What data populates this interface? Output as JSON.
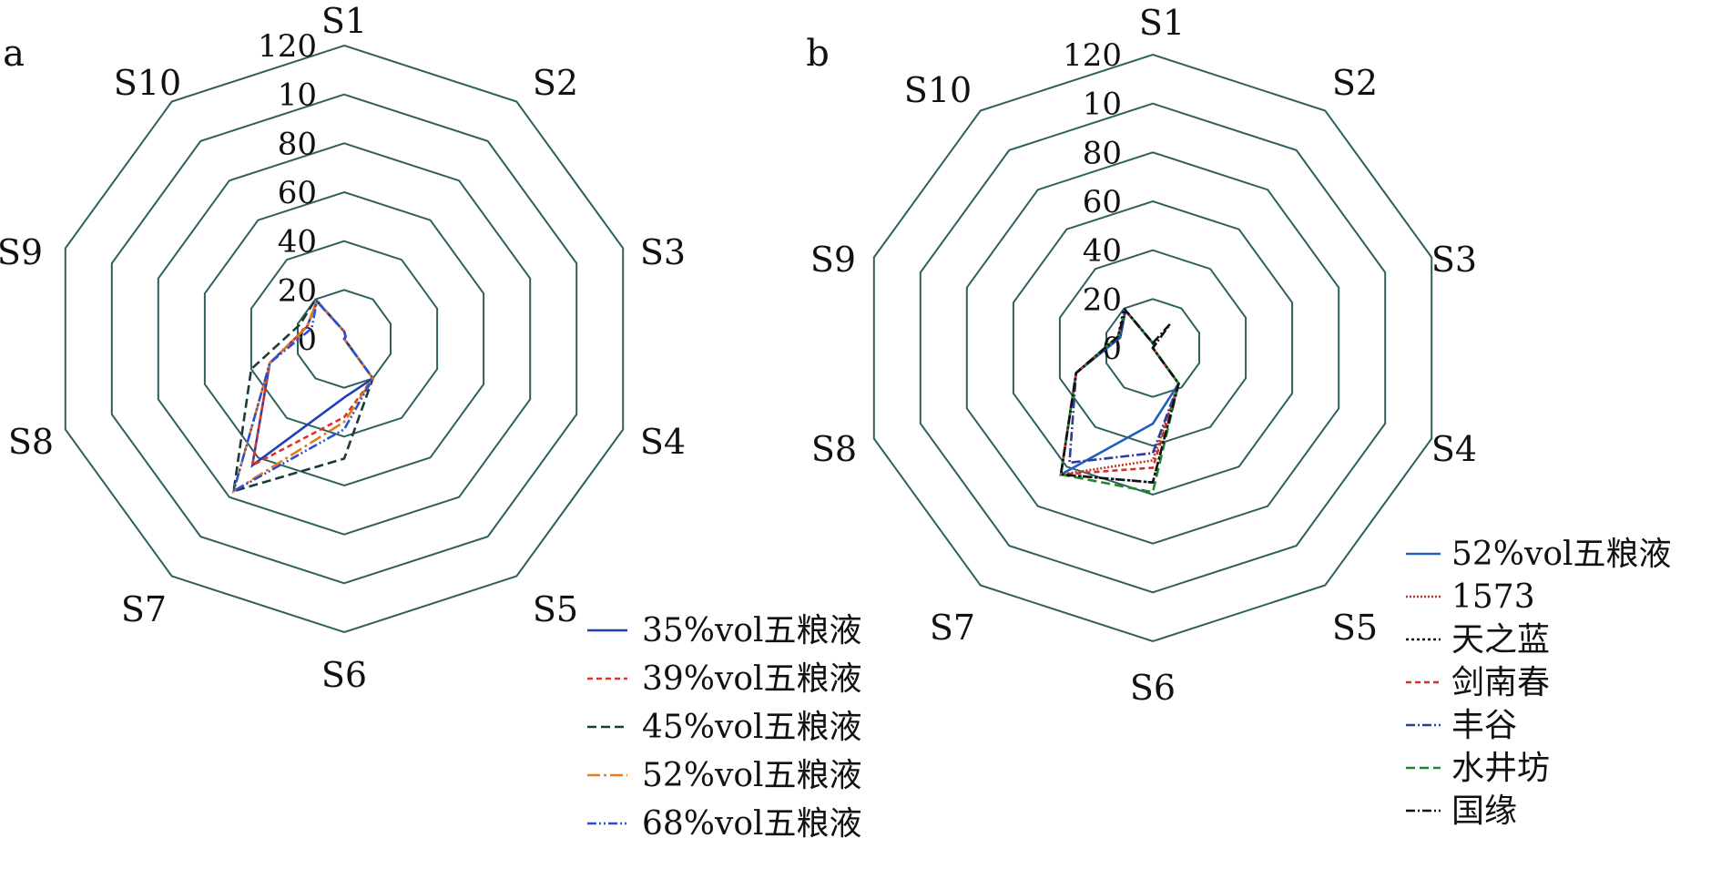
{
  "chart_data": [
    {
      "panel_label": "a",
      "type": "radar",
      "axes": [
        "S1",
        "S2",
        "S3",
        "S4",
        "S5",
        "S6",
        "S7",
        "S8",
        "S9",
        "S10"
      ],
      "radial_ticks": [
        "0",
        "20",
        "40",
        "60",
        "80",
        "10",
        "120"
      ],
      "radial_range": [
        0,
        120
      ],
      "legend_position": "bottom-right",
      "series": [
        {
          "name": "35%vol五粮液",
          "color": "#1f3fb5",
          "dash": "",
          "values": [
            3,
            1,
            0,
            0,
            20,
            24,
            64,
            32,
            16,
            19
          ]
        },
        {
          "name": "39%vol五粮液",
          "color": "#e0312b",
          "dash": "6,4",
          "values": [
            3,
            1,
            0,
            0,
            20,
            32,
            64,
            32,
            16,
            19
          ]
        },
        {
          "name": "45%vol五粮液",
          "color": "#1b3a3a",
          "dash": "10,5",
          "values": [
            3,
            1,
            0,
            0,
            20,
            49,
            77,
            40,
            19,
            20
          ]
        },
        {
          "name": "52%vol五粮液",
          "color": "#e57a1a",
          "dash": "14,4,3,4",
          "values": [
            3,
            1,
            0,
            0,
            20,
            34,
            77,
            32,
            16,
            19
          ]
        },
        {
          "name": "68%vol五粮液",
          "color": "#2a4fd6",
          "dash": "10,3,2,3,2,3",
          "values": [
            3,
            1,
            0,
            0,
            20,
            37,
            77,
            32,
            14,
            19
          ]
        }
      ]
    },
    {
      "panel_label": "b",
      "type": "radar",
      "axes": [
        "S1",
        "S2",
        "S3",
        "S4",
        "S5",
        "S6",
        "S7",
        "S8",
        "S9",
        "S10"
      ],
      "radial_ticks": [
        "0",
        "20",
        "40",
        "60",
        "80",
        "10",
        "120"
      ],
      "radial_range": [
        0,
        120
      ],
      "legend_position": "bottom-right",
      "series": [
        {
          "name": "52%vol五粮液",
          "color": "#1f5fbf",
          "dash": "",
          "values": [
            2,
            1,
            0,
            0,
            18,
            31,
            64,
            33,
            14,
            19
          ]
        },
        {
          "name": "1573",
          "color": "#c0332b",
          "dash": "2,2",
          "values": [
            2,
            1,
            0,
            0,
            18,
            46,
            64,
            33,
            15,
            19
          ]
        },
        {
          "name": "天之蓝",
          "color": "#111111",
          "dash": "3,3",
          "values": [
            2,
            3,
            0,
            0,
            18,
            55,
            64,
            33,
            15,
            20
          ]
        },
        {
          "name": "剑南春",
          "color": "#c8342c",
          "dash": "6,4",
          "values": [
            2,
            1,
            0,
            0,
            18,
            49,
            64,
            33,
            15,
            19
          ]
        },
        {
          "name": "丰谷",
          "color": "#2b3c9e",
          "dash": "10,3,2,3",
          "values": [
            2,
            1,
            0,
            0,
            18,
            43,
            58,
            33,
            14,
            19
          ]
        },
        {
          "name": "水井坊",
          "color": "#1a8a2a",
          "dash": "10,5",
          "values": [
            2,
            1,
            0,
            0,
            18,
            59,
            64,
            33,
            15,
            19
          ]
        },
        {
          "name": "国缘",
          "color": "#111111",
          "dash": "10,3,2,3",
          "values": [
            2,
            12,
            0,
            0,
            18,
            55,
            64,
            33,
            15,
            19
          ]
        }
      ]
    }
  ]
}
